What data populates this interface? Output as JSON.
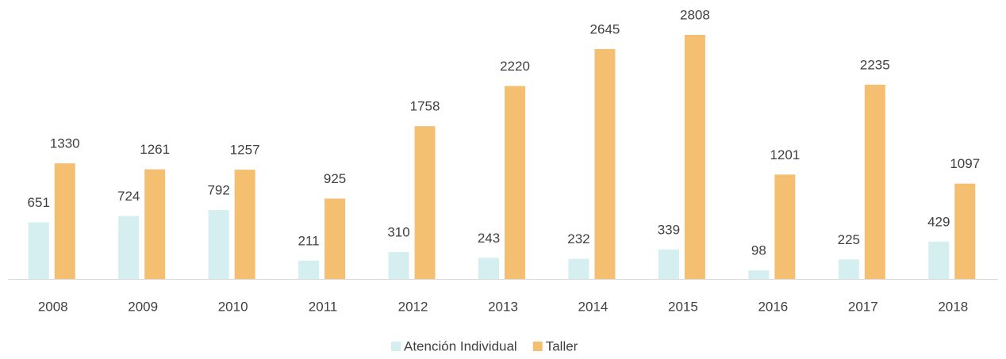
{
  "chart_data": {
    "type": "bar",
    "categories": [
      "2008",
      "2009",
      "2010",
      "2011",
      "2012",
      "2013",
      "2014",
      "2015",
      "2016",
      "2017",
      "2018"
    ],
    "series": [
      {
        "name": "Atención Individual",
        "color": "#d5eef0",
        "values": [
          651,
          724,
          792,
          211,
          310,
          243,
          232,
          339,
          98,
          225,
          429
        ]
      },
      {
        "name": "Taller",
        "color": "#f4bf70",
        "values": [
          1330,
          1261,
          1257,
          925,
          1758,
          2220,
          2645,
          2808,
          1201,
          2235,
          1097
        ]
      }
    ],
    "legend": "bottom"
  }
}
